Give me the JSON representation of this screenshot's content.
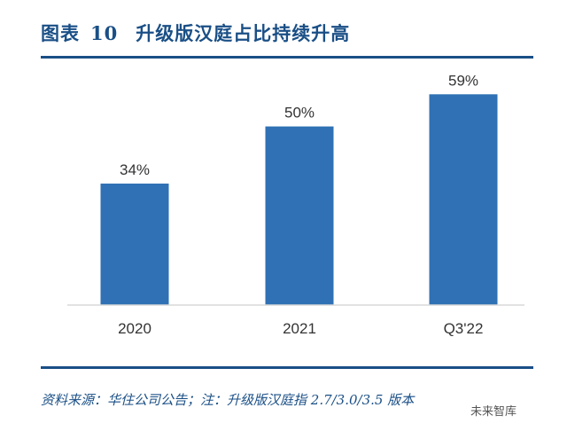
{
  "figure": {
    "label": "图表",
    "number": "10",
    "title": "升级版汉庭占比持续升高"
  },
  "footer": {
    "source": "资料来源：华住公司公告；注：升级版汉庭指 2.7/3.0/3.5 版本",
    "watermark": "未来智库"
  },
  "colors": {
    "bar": "#2f71b4",
    "header": "#1a4f86"
  },
  "chart_data": {
    "type": "bar",
    "categories": [
      "2020",
      "2021",
      "Q3'22"
    ],
    "values": [
      34,
      50,
      59
    ],
    "value_labels": [
      "34%",
      "50%",
      "59%"
    ],
    "unit": "%",
    "ylim": [
      0,
      70
    ],
    "grid": false,
    "legend": "none"
  }
}
